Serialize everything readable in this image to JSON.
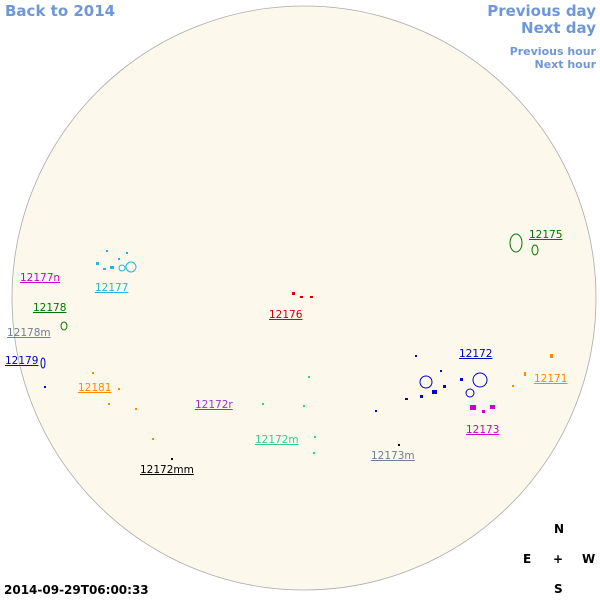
{
  "navigation": {
    "back": "Back to 2014",
    "previous_day": "Previous day",
    "next_day": "Next day",
    "previous_hour": "Previous hour",
    "next_hour": "Next hour"
  },
  "regions": [
    "12177n",
    "12177",
    "12178",
    "12178m",
    "12179",
    "12181",
    "12172r",
    "12176",
    "12172m",
    "12172mm",
    "12173m",
    "12172",
    "12171",
    "12173",
    "12175"
  ],
  "compass": {
    "north": "N",
    "east": "E",
    "center": "+",
    "west": "W",
    "south": "S"
  },
  "timestamp": "2014-09-29T06:00:33"
}
